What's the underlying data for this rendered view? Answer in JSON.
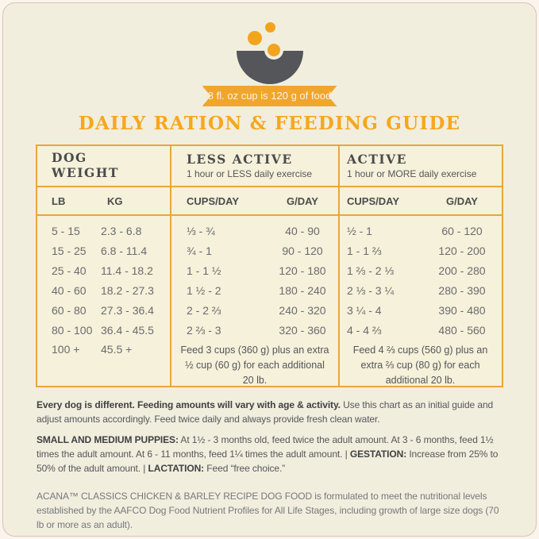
{
  "colors": {
    "accent_orange": "#f0a62c",
    "title_orange": "#f6a71e",
    "table_border_orange": "#e9a63b",
    "bowl_gray": "#55565a",
    "card_background": "#f1eede",
    "table_background": "#f5f1da"
  },
  "banner": {
    "text": "8 fl. oz cup is 120 g of food"
  },
  "title": "DAILY RATION & FEEDING GUIDE",
  "table": {
    "sections": [
      {
        "title": "DOG WEIGHT",
        "subtitle": ""
      },
      {
        "title": "LESS ACTIVE",
        "subtitle": "1 hour or LESS daily exercise"
      },
      {
        "title": "ACTIVE",
        "subtitle": "1 hour or MORE daily exercise"
      }
    ],
    "columns": [
      "LB",
      "KG",
      "CUPS/DAY",
      "G/DAY",
      "CUPS/DAY",
      "G/DAY"
    ],
    "rows": [
      {
        "lb": "5 - 15",
        "kg": "2.3 - 6.8",
        "la_cups": "⅓ - ¾",
        "la_g": "40 - 90",
        "a_cups": "½ - 1",
        "a_g": "60 - 120"
      },
      {
        "lb": "15 - 25",
        "kg": "6.8 - 11.4",
        "la_cups": "¾ - 1",
        "la_g": "90 - 120",
        "a_cups": "1 - 1 ⅔",
        "a_g": "120 - 200"
      },
      {
        "lb": "25 - 40",
        "kg": "11.4 - 18.2",
        "la_cups": "1 - 1 ½",
        "la_g": "120 - 180",
        "a_cups": "1 ⅔ - 2 ⅓",
        "a_g": "200 - 280"
      },
      {
        "lb": "40 - 60",
        "kg": "18.2 - 27.3",
        "la_cups": "1 ½ - 2",
        "la_g": "180 - 240",
        "a_cups": "2 ⅓ - 3 ¼",
        "a_g": "280 - 390"
      },
      {
        "lb": "60 - 80",
        "kg": "27.3 - 36.4",
        "la_cups": "2 - 2 ⅔",
        "la_g": "240 - 320",
        "a_cups": "3 ¼ - 4",
        "a_g": "390 - 480"
      },
      {
        "lb": "80 - 100",
        "kg": "36.4 - 45.5",
        "la_cups": "2 ⅔ - 3",
        "la_g": "320 - 360",
        "a_cups": "4 - 4 ⅔",
        "a_g": "480 - 560"
      }
    ],
    "last_row": {
      "lb": "100 +",
      "kg": "45.5 +",
      "less_active_note": "Feed 3 cups (360 g) plus an extra ½ cup (60 g) for each additional 20 lb.",
      "active_note": "Feed 4 ⅔ cups (560 g) plus an extra ⅔ cup (80 g) for each additional 20 lb."
    }
  },
  "footer": {
    "p1_bold": "Every dog is different. Feeding amounts will vary with age & activity.",
    "p1_rest": " Use this chart as an initial guide and adjust amounts accordingly. Feed twice daily and always provide fresh clean water.",
    "p2_puppies_label": "SMALL AND MEDIUM PUPPIES:",
    "p2_puppies_text": " At 1½ - 3 months old, feed twice the adult amount. At 3 - 6 months, feed 1½ times the adult amount. At 6 - 11 months, feed 1¼ times the adult amount. ",
    "separator": "| ",
    "p2_gestation_label": "GESTATION:",
    "p2_gestation_text": " Increase from 25% to 50% of the adult amount. ",
    "p2_lactation_label": "LACTATION:",
    "p2_lactation_text": " Feed “free choice.”",
    "p3": "ACANA™ CLASSICS CHICKEN & BARLEY RECIPE DOG FOOD is formulated to meet the nutritional levels established by the AAFCO Dog Food Nutrient Profiles for All Life Stages, including growth of large size dogs (70 lb or more as an adult)."
  }
}
